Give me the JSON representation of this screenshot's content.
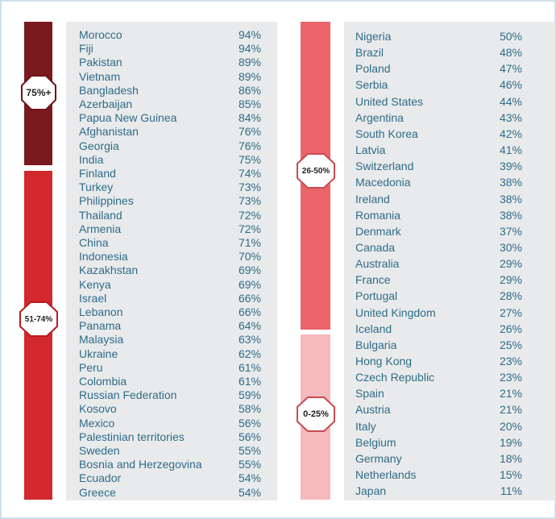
{
  "colors": {
    "band_75_plus": "#7a1a1e",
    "band_51_74": "#d3282d",
    "band_26_50": "#ea646a",
    "band_0_25": "#f6b9bc",
    "text": "#2e6c88",
    "panel": "#e9eaec"
  },
  "bands": {
    "b1": "75%+",
    "b2": "51-74%",
    "b3": "26-50%",
    "b4": "0-25%"
  },
  "chart_data": {
    "type": "table",
    "columns": [
      {
        "rows": [
          {
            "country": "Morocco",
            "value": "94%"
          },
          {
            "country": "Fiji",
            "value": "94%"
          },
          {
            "country": "Pakistan",
            "value": "89%"
          },
          {
            "country": "Vietnam",
            "value": "89%"
          },
          {
            "country": "Bangladesh",
            "value": "86%"
          },
          {
            "country": "Azerbaijan",
            "value": "85%"
          },
          {
            "country": "Papua New Guinea",
            "value": "84%"
          },
          {
            "country": "Afghanistan",
            "value": "76%"
          },
          {
            "country": "Georgia",
            "value": "76%"
          },
          {
            "country": "India",
            "value": "75%"
          },
          {
            "country": "Finland",
            "value": "74%"
          },
          {
            "country": "Turkey",
            "value": "73%"
          },
          {
            "country": "Philippines",
            "value": "73%"
          },
          {
            "country": "Thailand",
            "value": "72%"
          },
          {
            "country": "Armenia",
            "value": "72%"
          },
          {
            "country": "China",
            "value": "71%"
          },
          {
            "country": "Indonesia",
            "value": "70%"
          },
          {
            "country": "Kazakhstan",
            "value": "69%"
          },
          {
            "country": "Kenya",
            "value": "69%"
          },
          {
            "country": "Israel",
            "value": "66%"
          },
          {
            "country": "Lebanon",
            "value": "66%"
          },
          {
            "country": "Panama",
            "value": "64%"
          },
          {
            "country": "Malaysia",
            "value": "63%"
          },
          {
            "country": "Ukraine",
            "value": "62%"
          },
          {
            "country": "Peru",
            "value": "61%"
          },
          {
            "country": "Colombia",
            "value": "61%"
          },
          {
            "country": "Russian Federation",
            "value": "59%"
          },
          {
            "country": "Kosovo",
            "value": "58%"
          },
          {
            "country": "Mexico",
            "value": "56%"
          },
          {
            "country": "Palestinian territories",
            "value": "56%"
          },
          {
            "country": "Sweden",
            "value": "55%"
          },
          {
            "country": "Bosnia and Herzegovina",
            "value": "55%"
          },
          {
            "country": "Ecuador",
            "value": "54%"
          },
          {
            "country": "Greece",
            "value": "54%"
          }
        ]
      },
      {
        "rows": [
          {
            "country": "Nigeria",
            "value": "50%"
          },
          {
            "country": "Brazil",
            "value": "48%"
          },
          {
            "country": "Poland",
            "value": "47%"
          },
          {
            "country": "Serbia",
            "value": "46%"
          },
          {
            "country": "United States",
            "value": "44%"
          },
          {
            "country": "Argentina",
            "value": "43%"
          },
          {
            "country": "South Korea",
            "value": "42%"
          },
          {
            "country": "Latvia",
            "value": "41%"
          },
          {
            "country": "Switzerland",
            "value": "39%"
          },
          {
            "country": "Macedonia",
            "value": "38%"
          },
          {
            "country": "Ireland",
            "value": "38%"
          },
          {
            "country": "Romania",
            "value": "38%"
          },
          {
            "country": "Denmark",
            "value": "37%"
          },
          {
            "country": "Canada",
            "value": "30%"
          },
          {
            "country": "Australia",
            "value": "29%"
          },
          {
            "country": "France",
            "value": "29%"
          },
          {
            "country": "Portugal",
            "value": "28%"
          },
          {
            "country": "United Kingdom",
            "value": "27%"
          },
          {
            "country": "Iceland",
            "value": "26%"
          },
          {
            "country": "Bulgaria",
            "value": "25%"
          },
          {
            "country": "Hong Kong",
            "value": "23%"
          },
          {
            "country": "Czech Republic",
            "value": "23%"
          },
          {
            "country": "Spain",
            "value": "21%"
          },
          {
            "country": "Austria",
            "value": "21%"
          },
          {
            "country": "Italy",
            "value": "20%"
          },
          {
            "country": "Belgium",
            "value": "19%"
          },
          {
            "country": "Germany",
            "value": "18%"
          },
          {
            "country": "Netherlands",
            "value": "15%"
          },
          {
            "country": "Japan",
            "value": "11%"
          }
        ]
      }
    ]
  }
}
